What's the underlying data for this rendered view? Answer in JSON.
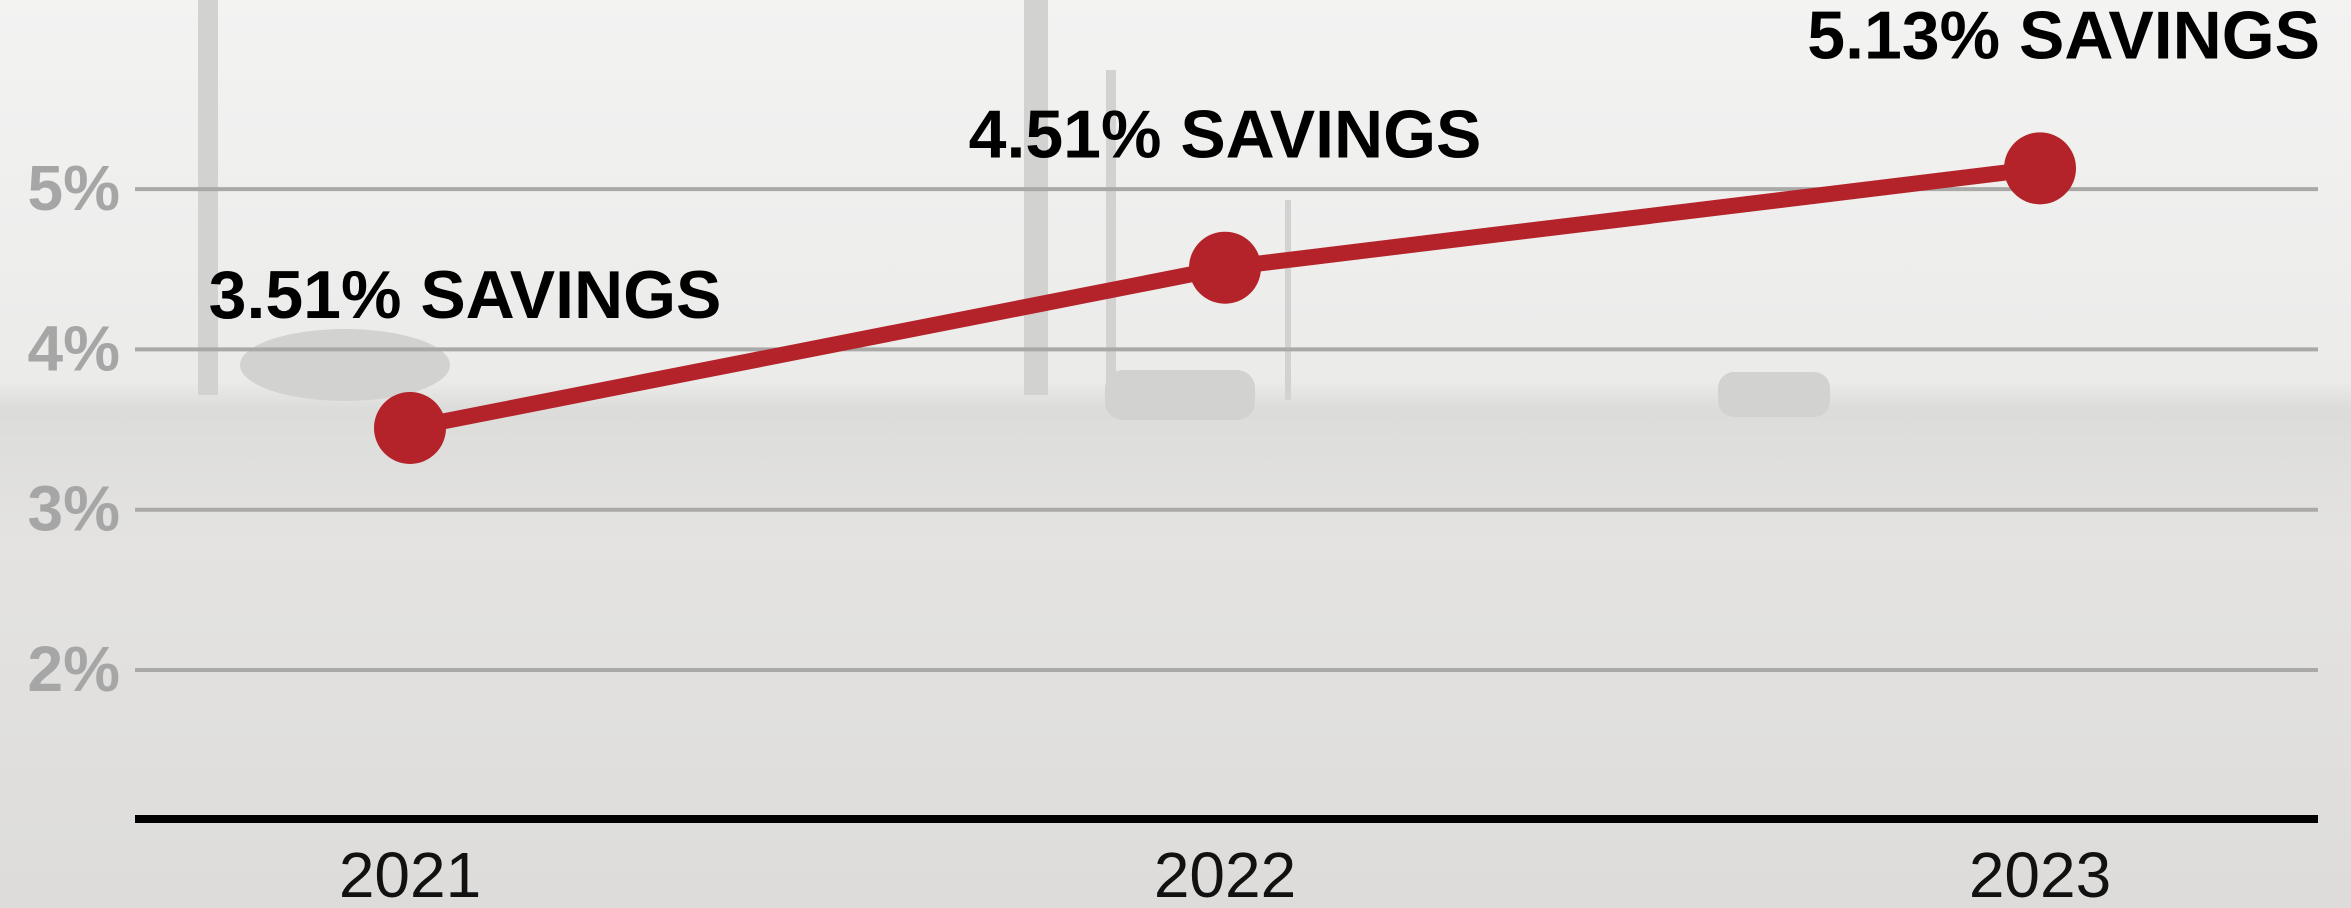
{
  "chart_data": {
    "type": "line",
    "categories": [
      "2021",
      "2022",
      "2023"
    ],
    "series": [
      {
        "name": "Savings",
        "color": "#b5232a",
        "values": [
          3.51,
          4.51,
          5.13
        ],
        "value_labels": [
          "3.51% SAVINGS",
          "4.51% SAVINGS",
          "5.13% SAVINGS"
        ]
      }
    ],
    "ylim": [
      1.07,
      5.6
    ],
    "yticks": [
      {
        "value": 2,
        "label": "2%"
      },
      {
        "value": 3,
        "label": "3%"
      },
      {
        "value": 4,
        "label": "4%"
      },
      {
        "value": 5,
        "label": "5%"
      }
    ],
    "grid": true
  }
}
